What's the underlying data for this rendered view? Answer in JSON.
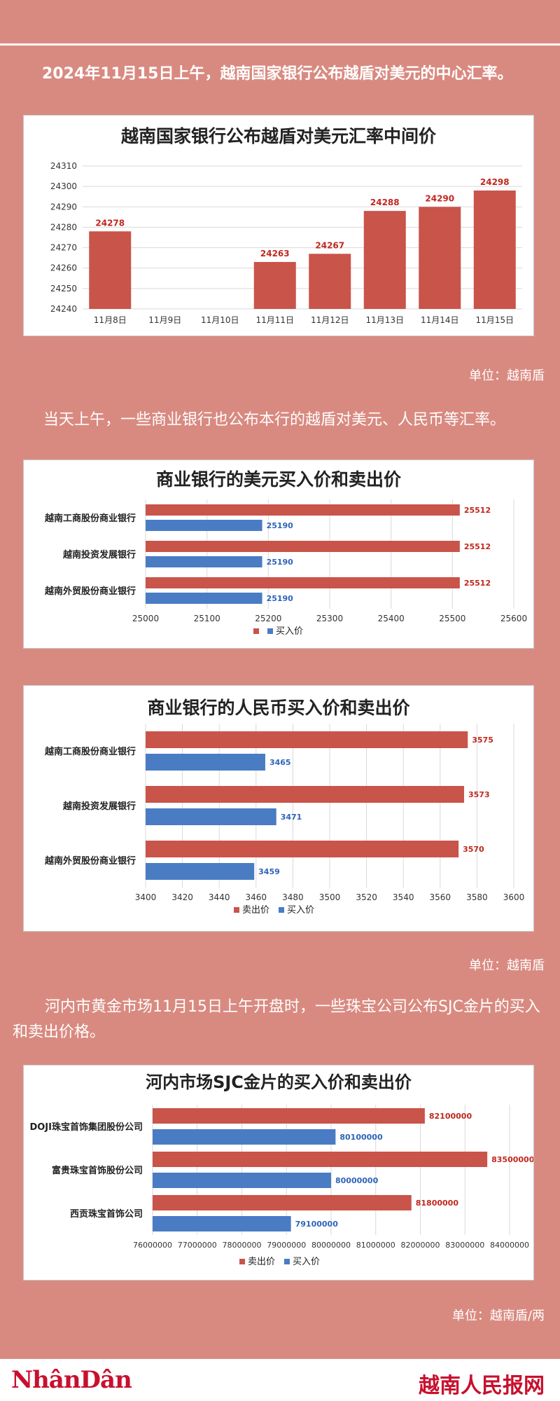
{
  "texts": {
    "intro1": "2024年11月15日上午，越南国家银行公布越盾对美元的中心汇率。",
    "unit1": "单位：越南盾",
    "intro2": "当天上午，一些商业银行也公布本行的越盾对美元、人民币等汇率。",
    "unit2": "单位：越南盾",
    "intro3": "河内市黄金市场11月15日上午开盘时，一些珠宝公司公布SJC金片的买入和卖出价格。",
    "unit3": "单位：越南盾/两"
  },
  "footer": {
    "logo_left": "NhânDân",
    "logo_right": "越南人民报网"
  },
  "colors": {
    "background": "#d98a80",
    "sell_red": "#c9544a",
    "buy_blue": "#4a7cc4",
    "label_red": "#c0281e",
    "label_blue": "#2e64b8"
  },
  "chart_data": [
    {
      "type": "bar",
      "title": "越南国家银行公布越盾对美元汇率中间价",
      "categories": [
        "11月8日",
        "11月9日",
        "11月10日",
        "11月11日",
        "11月12日",
        "11月13日",
        "11月14日",
        "11月15日"
      ],
      "values": [
        24278,
        null,
        null,
        24263,
        24267,
        24288,
        24290,
        24298
      ],
      "value_labels": [
        "24278",
        "",
        "",
        "24263",
        "24267",
        "24288",
        "24290",
        "24298"
      ],
      "ylim": [
        24240,
        24310
      ],
      "yticks": [
        "24240",
        "24250",
        "24260",
        "24270",
        "24280",
        "24290",
        "24300",
        "24310"
      ],
      "grid": true,
      "xlabel": "",
      "ylabel": ""
    },
    {
      "type": "bar",
      "orientation": "horizontal",
      "title": "商业银行的美元买入价和卖出价",
      "categories": [
        "越南工商股份商业银行",
        "越南投资发展银行",
        "越南外贸股份商业银行"
      ],
      "series": [
        {
          "name": "",
          "values": [
            25512,
            25512,
            25512
          ],
          "labels": [
            "25512",
            "25512",
            "25512"
          ]
        },
        {
          "name": "买入价",
          "values": [
            25190,
            25190,
            25190
          ],
          "labels": [
            "25190",
            "25190",
            "25190"
          ]
        }
      ],
      "xlim": [
        25000,
        25600
      ],
      "xticks": [
        "25000",
        "25100",
        "25200",
        "25300",
        "25400",
        "25500",
        "25600"
      ],
      "legend_position": "bottom"
    },
    {
      "type": "bar",
      "orientation": "horizontal",
      "title": "商业银行的人民币买入价和卖出价",
      "categories": [
        "越南工商股份商业银行",
        "越南投资发展银行",
        "越南外贸股份商业银行"
      ],
      "series": [
        {
          "name": "卖出价",
          "values": [
            3575,
            3573,
            3570
          ],
          "labels": [
            "3575",
            "3573",
            "3570"
          ]
        },
        {
          "name": "买入价",
          "values": [
            3465,
            3471,
            3459
          ],
          "labels": [
            "3465",
            "3471",
            "3459"
          ]
        }
      ],
      "xlim": [
        3400,
        3600
      ],
      "xticks": [
        "3400",
        "3420",
        "3440",
        "3460",
        "3480",
        "3500",
        "3520",
        "3540",
        "3560",
        "3580",
        "3600"
      ],
      "legend_position": "bottom"
    },
    {
      "type": "bar",
      "orientation": "horizontal",
      "title": "河内市场SJC金片的买入价和卖出价",
      "categories": [
        "DOJI珠宝首饰集团股份公司",
        "富贵珠宝首饰股份公司",
        "西贡珠宝首饰公司"
      ],
      "series": [
        {
          "name": "卖出价",
          "values": [
            82100000,
            83500000,
            81800000
          ],
          "labels": [
            "82100000",
            "83500000",
            "81800000"
          ]
        },
        {
          "name": "买入价",
          "values": [
            80100000,
            80000000,
            79100000
          ],
          "labels": [
            "80100000",
            "80000000",
            "79100000"
          ]
        }
      ],
      "xlim": [
        76000000,
        84000000
      ],
      "xticks": [
        "76000000",
        "77000000",
        "78000000",
        "79000000",
        "80000000",
        "81000000",
        "82000000",
        "83000000",
        "84000000"
      ],
      "legend_position": "bottom"
    }
  ]
}
